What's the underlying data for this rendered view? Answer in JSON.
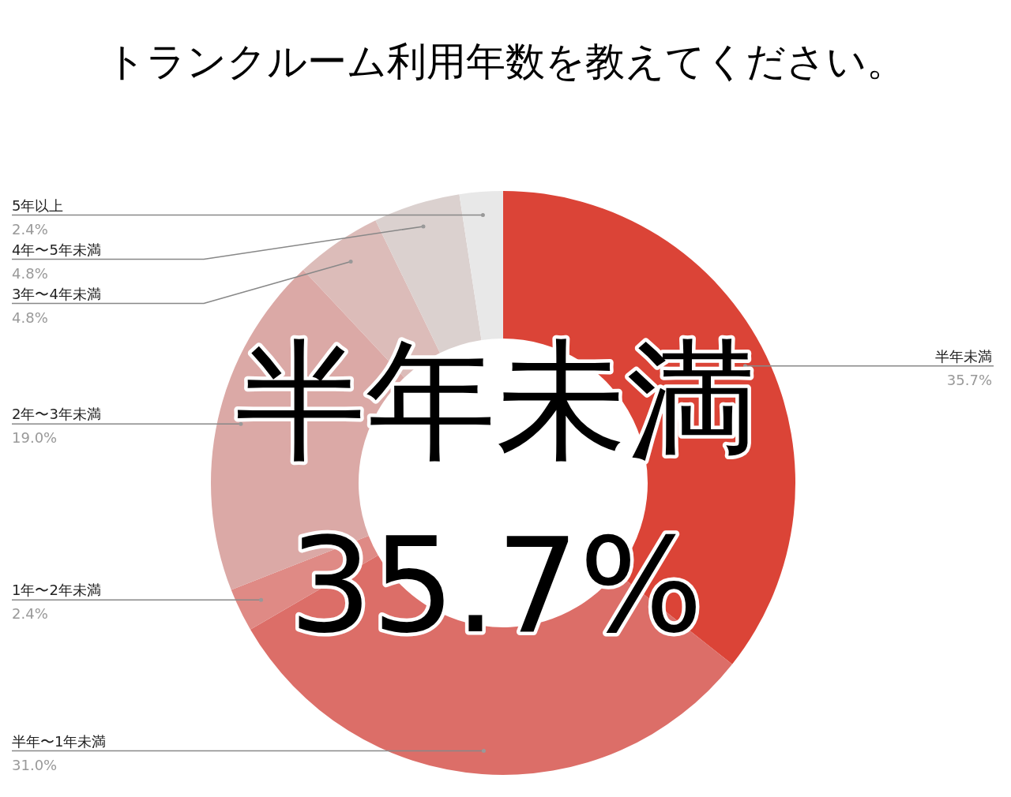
{
  "chart_data": {
    "type": "donut",
    "title": "トランクルーム利用年数を教えてください。",
    "categories": [
      "半年未満",
      "半年〜1年未満",
      "1年〜2年未満",
      "2年〜3年未満",
      "3年〜4年未満",
      "4年〜5年未満",
      "5年以上"
    ],
    "values": [
      35.7,
      31.0,
      2.4,
      19.0,
      4.8,
      4.8,
      2.4
    ],
    "value_labels": [
      "35.7%",
      "31.0%",
      "2.4%",
      "19.0%",
      "4.8%",
      "4.8%",
      "2.4%"
    ],
    "colors": [
      "#db4437",
      "#dc6e68",
      "#df8a85",
      "#dba9a6",
      "#dcbcb9",
      "#dbd1cf",
      "#e8e8e8"
    ],
    "annotations": [
      "半年未満",
      "35.7%"
    ],
    "legend": false
  }
}
